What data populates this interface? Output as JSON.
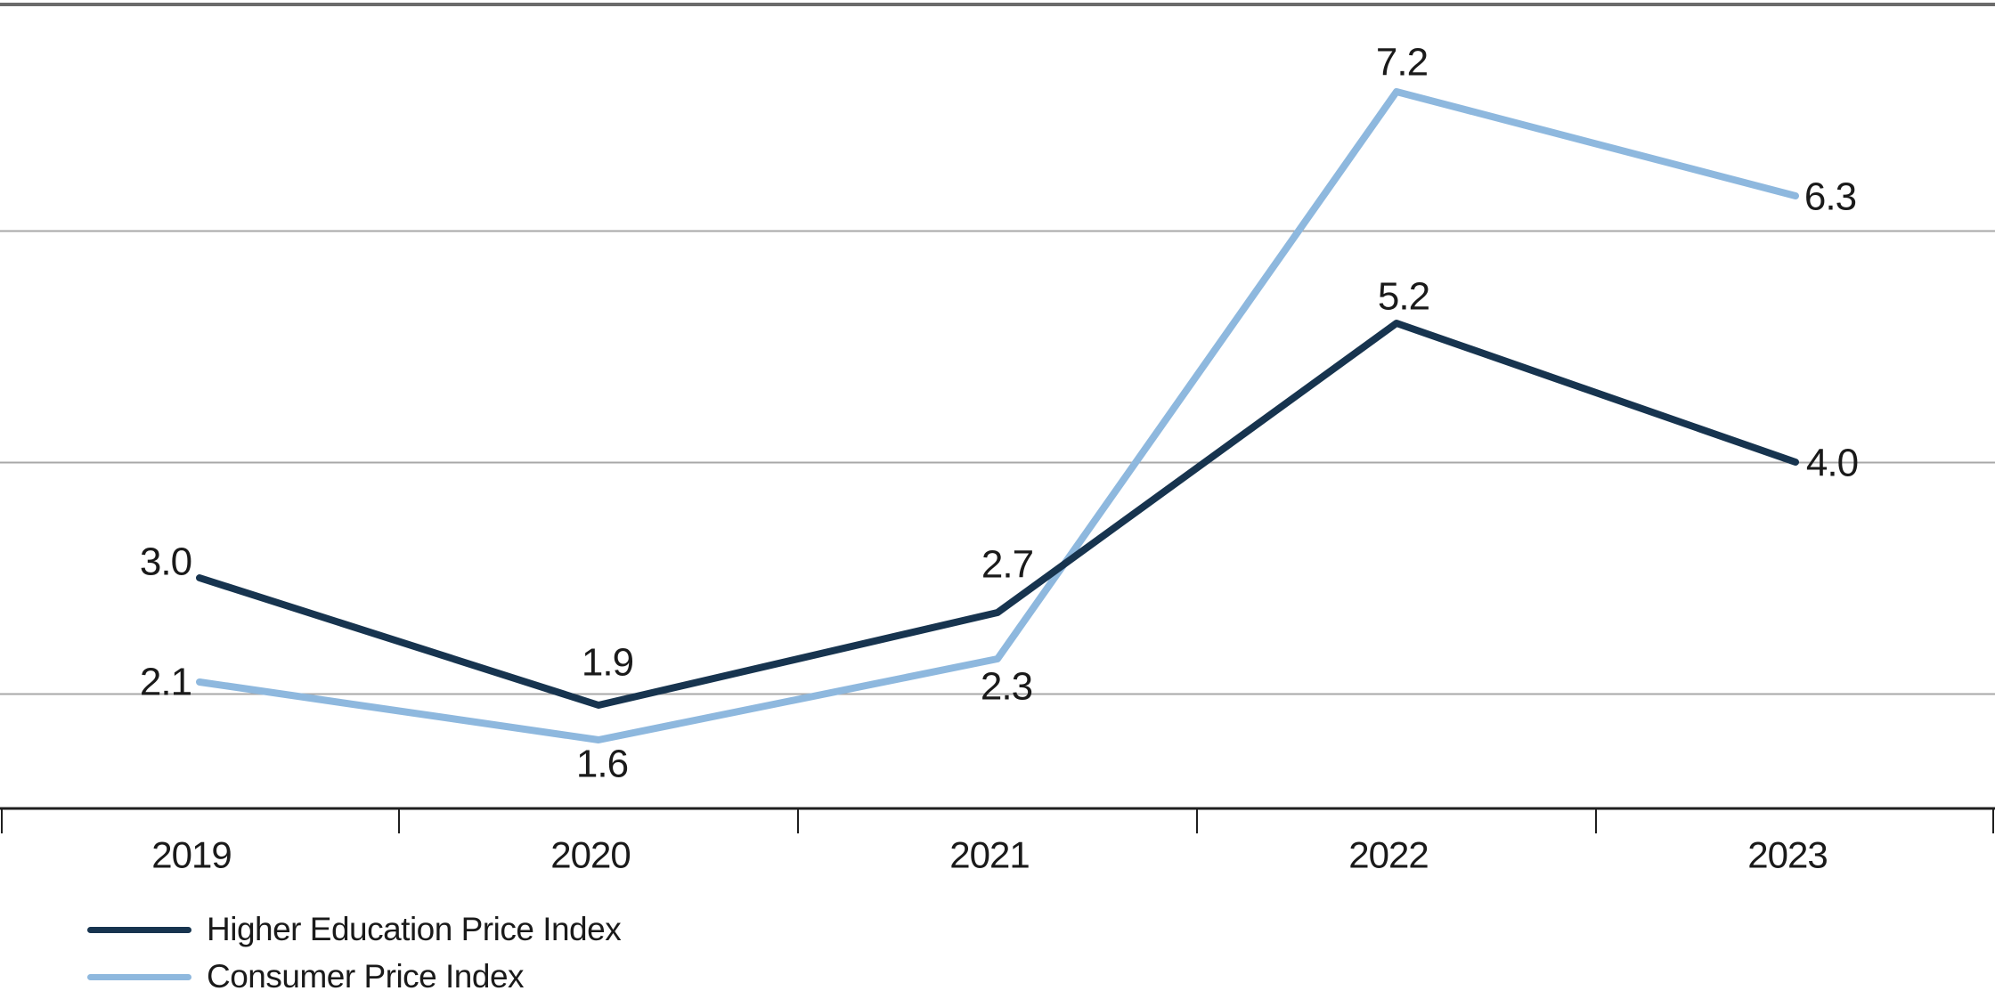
{
  "chart_data": {
    "type": "line",
    "title": "",
    "xlabel": "",
    "ylabel": "",
    "categories": [
      "2019",
      "2020",
      "2021",
      "2022",
      "2023"
    ],
    "series": [
      {
        "name": "Higher Education Price Index",
        "color": "#17344F",
        "values": [
          3.0,
          1.9,
          2.7,
          5.2,
          4.0
        ],
        "labels": [
          "3.0",
          "1.9",
          "2.7",
          "5.2",
          "4.0"
        ]
      },
      {
        "name": "Consumer Price Index",
        "color": "#8EB8DE",
        "values": [
          2.1,
          1.6,
          2.3,
          7.2,
          6.3
        ],
        "labels": [
          "2.1",
          "1.6",
          "2.3",
          "7.2",
          "6.3"
        ]
      }
    ],
    "ylim": [
      1.0,
      8.0
    ],
    "gridline_values": [
      2,
      4,
      6
    ],
    "grid": true,
    "legend_position": "bottom-left",
    "background_color": "#FFFFFF",
    "grid_color": "#A8A8A8",
    "axis_color": "#1F1F1F",
    "top_border_color": "#6B6B6B",
    "label_color": "#1A1A1A"
  }
}
